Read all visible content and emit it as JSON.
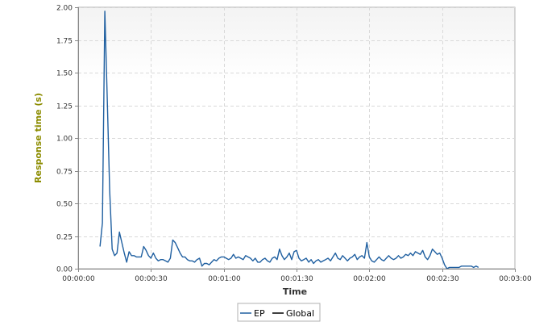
{
  "chart_data": {
    "type": "line",
    "title": "",
    "xlabel": "Time",
    "ylabel": "Response time (s)",
    "x_unit": "seconds",
    "xlim": [
      0,
      180
    ],
    "ylim": [
      0,
      2.0
    ],
    "x_ticks": [
      0,
      30,
      60,
      90,
      120,
      150,
      180
    ],
    "x_tick_labels": [
      "00:00:00",
      "00:00:30",
      "00:01:00",
      "00:01:30",
      "00:02:00",
      "00:02:30",
      "00:03:00"
    ],
    "y_ticks": [
      0,
      0.25,
      0.5,
      0.75,
      1.0,
      1.25,
      1.5,
      1.75,
      2.0
    ],
    "y_tick_labels": [
      "0.00",
      "0.25",
      "0.50",
      "0.75",
      "1.00",
      "1.25",
      "1.50",
      "1.75",
      "2.00"
    ],
    "grid": true,
    "legend_position": "bottom-center",
    "series": [
      {
        "name": "EP",
        "color": "#1f5fa0",
        "x": [
          9,
          10,
          11,
          12,
          13,
          14,
          15,
          16,
          17,
          18,
          19,
          20,
          21,
          22,
          23,
          24,
          25,
          26,
          27,
          28,
          29,
          30,
          31,
          32,
          33,
          34,
          35,
          36,
          37,
          38,
          39,
          40,
          41,
          42,
          43,
          44,
          45,
          46,
          47,
          48,
          49,
          50,
          51,
          52,
          53,
          54,
          55,
          56,
          57,
          58,
          59,
          60,
          61,
          62,
          63,
          64,
          65,
          66,
          67,
          68,
          69,
          70,
          71,
          72,
          73,
          74,
          75,
          76,
          77,
          78,
          79,
          80,
          81,
          82,
          83,
          84,
          85,
          86,
          87,
          88,
          89,
          90,
          91,
          92,
          93,
          94,
          95,
          96,
          97,
          98,
          99,
          100,
          101,
          102,
          103,
          104,
          105,
          106,
          107,
          108,
          109,
          110,
          111,
          112,
          113,
          114,
          115,
          116,
          117,
          118,
          119,
          120,
          121,
          122,
          123,
          124,
          125,
          126,
          127,
          128,
          129,
          130,
          131,
          132,
          133,
          134,
          135,
          136,
          137,
          138,
          139,
          140,
          141,
          142,
          143,
          144,
          145,
          146,
          147,
          148,
          149,
          150,
          151,
          152,
          153,
          154,
          155,
          156,
          157,
          158,
          159,
          160,
          161,
          162,
          163,
          164,
          165
        ],
        "values": [
          0.17,
          0.35,
          1.97,
          1.3,
          0.6,
          0.15,
          0.1,
          0.12,
          0.28,
          0.2,
          0.12,
          0.05,
          0.13,
          0.1,
          0.1,
          0.09,
          0.09,
          0.09,
          0.17,
          0.14,
          0.1,
          0.08,
          0.12,
          0.08,
          0.06,
          0.07,
          0.07,
          0.06,
          0.05,
          0.08,
          0.22,
          0.2,
          0.16,
          0.12,
          0.09,
          0.09,
          0.07,
          0.06,
          0.06,
          0.05,
          0.07,
          0.08,
          0.02,
          0.04,
          0.04,
          0.03,
          0.05,
          0.07,
          0.06,
          0.08,
          0.09,
          0.09,
          0.08,
          0.07,
          0.08,
          0.11,
          0.08,
          0.09,
          0.08,
          0.07,
          0.1,
          0.09,
          0.08,
          0.06,
          0.08,
          0.05,
          0.05,
          0.07,
          0.08,
          0.06,
          0.05,
          0.08,
          0.09,
          0.07,
          0.15,
          0.1,
          0.07,
          0.09,
          0.12,
          0.07,
          0.13,
          0.14,
          0.08,
          0.06,
          0.07,
          0.08,
          0.05,
          0.07,
          0.04,
          0.06,
          0.07,
          0.05,
          0.06,
          0.07,
          0.08,
          0.06,
          0.09,
          0.12,
          0.08,
          0.07,
          0.1,
          0.08,
          0.06,
          0.08,
          0.09,
          0.11,
          0.07,
          0.09,
          0.1,
          0.08,
          0.2,
          0.09,
          0.06,
          0.05,
          0.07,
          0.09,
          0.07,
          0.06,
          0.08,
          0.1,
          0.08,
          0.07,
          0.08,
          0.1,
          0.08,
          0.09,
          0.11,
          0.1,
          0.12,
          0.1,
          0.13,
          0.12,
          0.11,
          0.14,
          0.09,
          0.07,
          0.1,
          0.15,
          0.13,
          0.11,
          0.12,
          0.08,
          0.03,
          0.0,
          0.01,
          0.01,
          0.01,
          0.01,
          0.01,
          0.02,
          0.02,
          0.02,
          0.02,
          0.02,
          0.01,
          0.02,
          0.01
        ]
      },
      {
        "name": "Global",
        "color": "#000000",
        "x": [],
        "values": []
      }
    ]
  }
}
